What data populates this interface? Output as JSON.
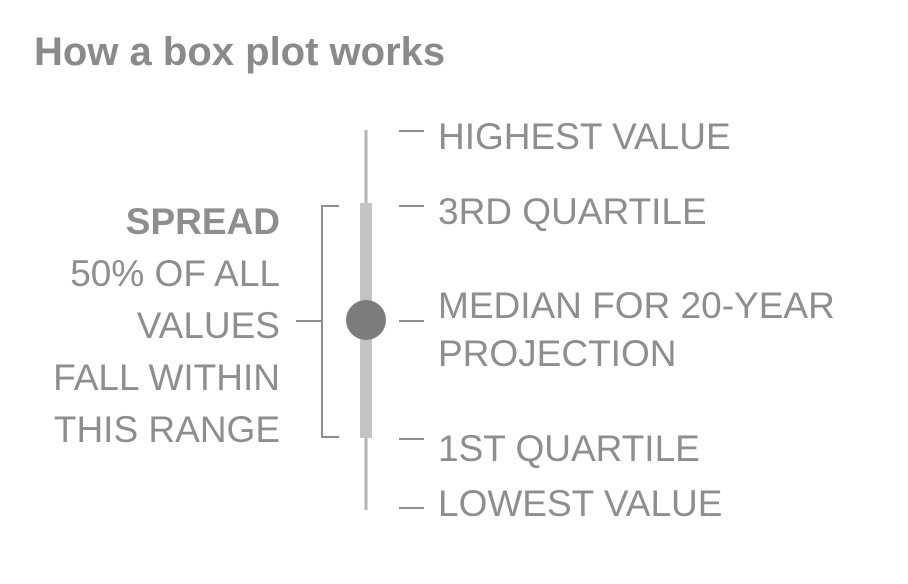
{
  "title": "How a box plot works",
  "labels": {
    "highest": "HIGHEST VALUE",
    "q3": "3RD QUARTILE",
    "median_line1": "MEDIAN FOR  20-YEAR",
    "median_line2": "PROJECTION",
    "q1": "1ST QUARTILE",
    "lowest": "LOWEST VALUE"
  },
  "spread": {
    "heading": "SPREAD",
    "lines": [
      "50% OF ALL",
      "VALUES",
      "FALL WITHIN",
      "THIS RANGE"
    ]
  },
  "colors": {
    "text": "#8e8e8e",
    "whisker": "#b4b4b4",
    "box": "#c4c4c4",
    "median_dot": "#7c7c7c",
    "ticks": "#8e8e8e"
  }
}
